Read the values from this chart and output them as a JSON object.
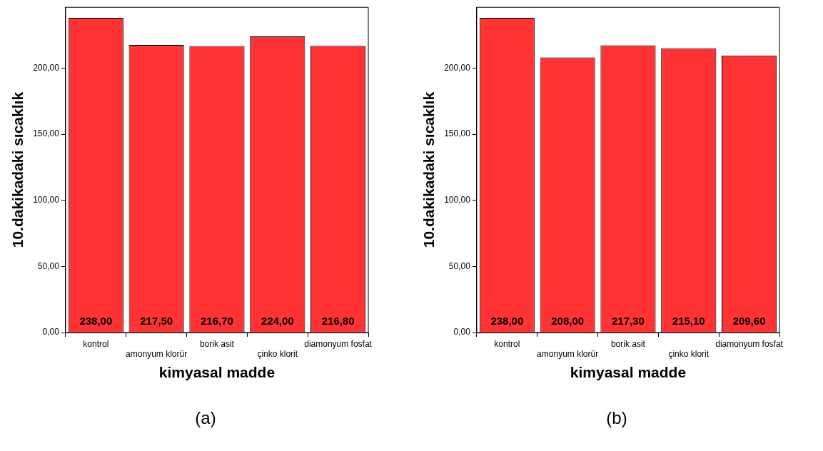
{
  "chart_data": [
    {
      "type": "bar",
      "title": "(a)",
      "xlabel": "kimyasal madde",
      "ylabel": "10.dakikadaki sıcaklık",
      "categories": [
        "kontrol",
        "amonyum klorür",
        "borik asit",
        "çinko klorit",
        "diamonyum fosfat"
      ],
      "values": [
        238.0,
        217.5,
        216.7,
        224.0,
        216.8
      ],
      "value_labels": [
        "238,00",
        "217,50",
        "216,70",
        "224,00",
        "216,80"
      ],
      "color": "#ff3333",
      "ylim": [
        0,
        246
      ],
      "yticks": [
        {
          "value": 0,
          "label": "0,00"
        },
        {
          "value": 50,
          "label": "50,00"
        },
        {
          "value": 100,
          "label": "100,00"
        },
        {
          "value": 150,
          "label": "150,00"
        },
        {
          "value": 200,
          "label": "200,00"
        }
      ],
      "grid": false,
      "legend": false
    },
    {
      "type": "bar",
      "title": "(b)",
      "xlabel": "kimyasal madde",
      "ylabel": "10.dakikadaki sıcaklık",
      "categories": [
        "kontrol",
        "amonyum klorür",
        "borik asit",
        "çinko klorit",
        "diamonyum fosfat"
      ],
      "values": [
        238.0,
        208.0,
        217.3,
        215.1,
        209.6
      ],
      "value_labels": [
        "238,00",
        "208,00",
        "217,30",
        "215,10",
        "209,60"
      ],
      "color": "#ff3333",
      "ylim": [
        0,
        246
      ],
      "yticks": [
        {
          "value": 0,
          "label": "0,00"
        },
        {
          "value": 50,
          "label": "50,00"
        },
        {
          "value": 100,
          "label": "100,00"
        },
        {
          "value": 150,
          "label": "150,00"
        },
        {
          "value": 200,
          "label": "200,00"
        }
      ],
      "grid": false,
      "legend": false
    }
  ]
}
